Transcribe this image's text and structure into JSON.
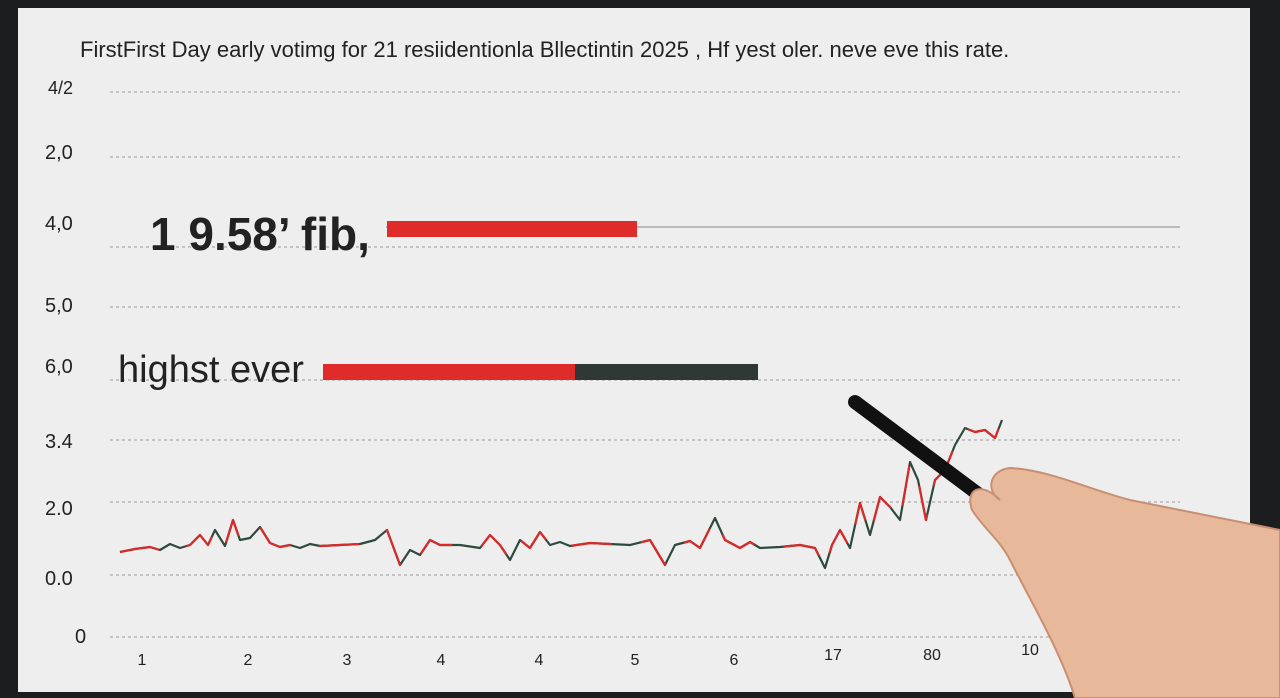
{
  "title": "FirstFirst  Day early votimg for 21 resiidentionla Bllectintin 2025 , Hf yest oler. neve eve this rate.",
  "y_axis_labels": [
    "4/2",
    "2,0",
    "4,0",
    "5,0",
    "6,0",
    "3.4",
    "2.0",
    "0.0",
    "0"
  ],
  "x_axis_labels": [
    "1",
    "2",
    "3",
    "4",
    "4",
    "5",
    "6",
    "17",
    "80",
    "10"
  ],
  "annotations": [
    "1 9.58’ fib,",
    "highst ever"
  ]
}
